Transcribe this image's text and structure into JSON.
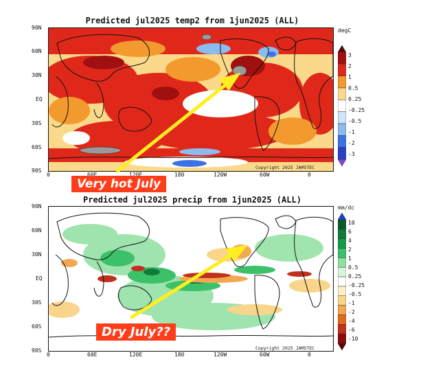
{
  "top": {
    "title": "Predicted jul2025 temp2 from 1jun2025 (ALL)",
    "units": "degC",
    "lat_labels": [
      "90N",
      "60N",
      "30N",
      "EQ",
      "30S",
      "60S",
      "90S"
    ],
    "lon_labels": [
      "0",
      "60E",
      "120E",
      "180",
      "120W",
      "60W",
      "0"
    ],
    "copyright": "Copyright 2025 JAMSTEC",
    "colorbar": {
      "labels": [
        "3",
        "2",
        "1",
        "0.5",
        "0.25",
        "-0.25",
        "-0.5",
        "-1",
        "-2",
        "-3"
      ],
      "colors": [
        "#5a0a0a",
        "#a01010",
        "#e0281a",
        "#f39a2e",
        "#fbd98a",
        "#ffffff",
        "#cfe6fa",
        "#8cbbf0",
        "#3b72e6",
        "#2a3ec8",
        "#7b4ad6"
      ]
    },
    "callout": "Very hot July"
  },
  "bottom": {
    "title": "Predicted jul2025 precip from 1jun2025 (ALL)",
    "units": "mm/dc",
    "lat_labels": [
      "90N",
      "60N",
      "30N",
      "EQ",
      "30S",
      "60S",
      "90S"
    ],
    "lon_labels": [
      "0",
      "60E",
      "120E",
      "180",
      "120W",
      "60W",
      "0"
    ],
    "copyright": "Copyright 2025 JAMSTEC",
    "colorbar": {
      "labels": [
        "10",
        "6",
        "4",
        "2",
        "1",
        "0.5",
        "0.25",
        "-0.25",
        "-0.5",
        "-1",
        "-2",
        "-4",
        "-6",
        "-10"
      ],
      "colors": [
        "#1a3fd6",
        "#0a5a2a",
        "#0f7a3a",
        "#169a48",
        "#3cc06a",
        "#8fe0a0",
        "#d8f5dc",
        "#ffffff",
        "#fdf0c8",
        "#f8d58a",
        "#f2a850",
        "#e06a1e",
        "#c0301a",
        "#8a0a0a",
        "#5a0505"
      ]
    },
    "callout": "Dry July??"
  },
  "colors": {
    "callout_bg": "#ff3d1a",
    "arrow": "#ffee22"
  }
}
